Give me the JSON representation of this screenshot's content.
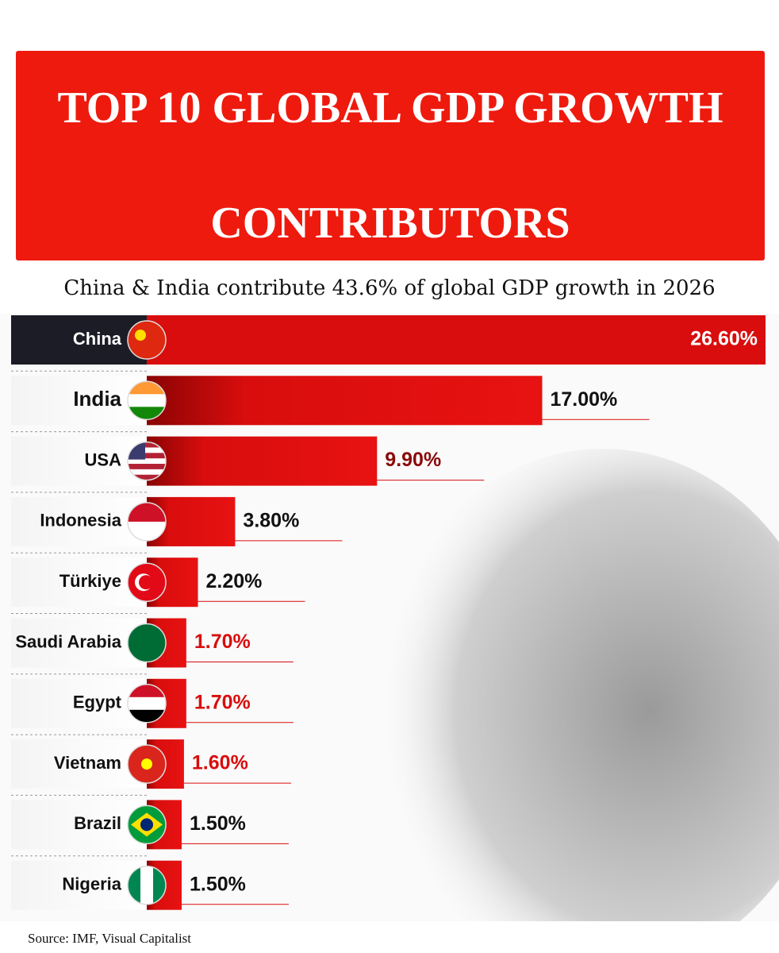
{
  "chart_data": {
    "type": "bar",
    "orientation": "horizontal",
    "title": "TOP 10 GLOBAL GDP GROWTH CONTRIBUTORS",
    "subtitle": "China & India contribute 43.6% of global GDP growth in 2026",
    "categories": [
      "China",
      "India",
      "USA",
      "Indonesia",
      "Türkiye",
      "Saudi Arabia",
      "Egypt",
      "Vietnam",
      "Brazil",
      "Nigeria"
    ],
    "values": [
      26.6,
      17.0,
      9.9,
      3.8,
      2.2,
      1.7,
      1.7,
      1.6,
      1.5,
      1.5
    ],
    "value_labels": [
      "26.60%",
      "17.00%",
      "9.90%",
      "3.80%",
      "2.20%",
      "1.70%",
      "1.70%",
      "1.60%",
      "1.50%",
      "1.50%"
    ],
    "color": "#d90d0d",
    "source": "Source: IMF, Visual Capitalist"
  }
}
